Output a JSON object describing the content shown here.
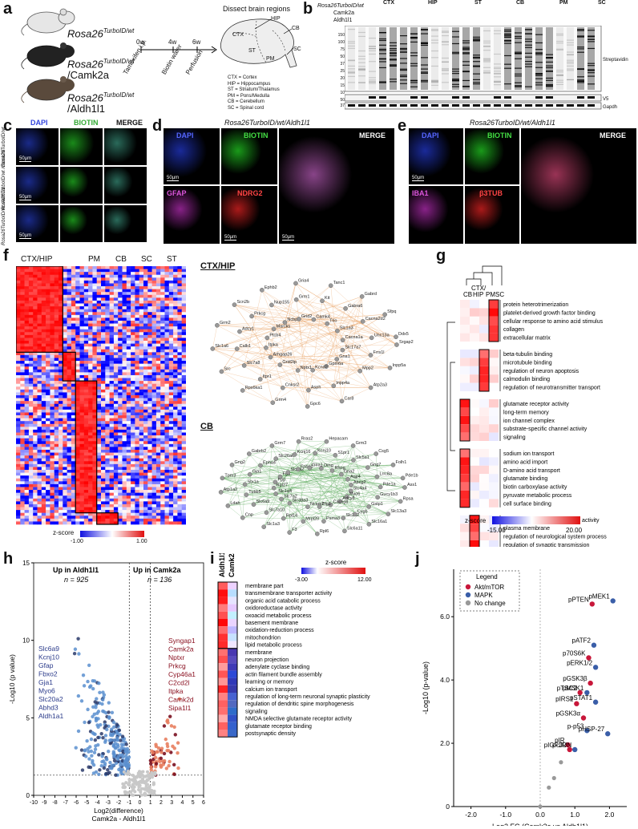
{
  "panel_labels": [
    "a",
    "b",
    "c",
    "d",
    "e",
    "f",
    "g",
    "h",
    "i",
    "j"
  ],
  "a": {
    "mice": [
      "Rosa26",
      "Rosa26",
      "Rosa26"
    ],
    "mice_sup": [
      "TurboID/wt",
      "TurboID/wt",
      "TurboID/wt"
    ],
    "mice_sub": [
      "",
      "/Camk2a",
      "/Aldh1l1"
    ],
    "timeline": [
      "0w",
      "4w",
      "6w"
    ],
    "steps": [
      "Tamoxifen i.p.",
      "Biotin water",
      "Perfusion"
    ],
    "dissect_title": "Dissect brain regions",
    "regions": [
      "CTX",
      "HIP",
      "ST",
      "PM",
      "CB",
      "SC"
    ],
    "legend": [
      "CTX = Cortex",
      "HIP = Hippocampus",
      "ST = Striatum/Thalamus",
      "PM = Pons/Medulla",
      "CB = Cerebellum",
      "SC = Spinal cord"
    ]
  },
  "b": {
    "regions": [
      "CTX",
      "HIP",
      "ST",
      "CB",
      "PM",
      "SC"
    ],
    "row_labels": [
      "Rosa26TurboID/wt",
      "Camk2a",
      "Aldh1l1"
    ],
    "mw": [
      "150",
      "100",
      "75",
      "50",
      "37",
      "25",
      "20",
      "15",
      "10"
    ],
    "mw2": [
      "50",
      "37"
    ],
    "blot_labels": [
      "Streptavidin",
      "V5",
      "Gapdh"
    ]
  },
  "c": {
    "headers": [
      "DAPI",
      "BIOTIN",
      "MERGE"
    ],
    "rows": [
      "Rosa26TurboID/wt",
      "Rosa26TurboID/wt /Camk2a",
      "Rosa26TurboID/wt /Aldh1l1"
    ],
    "scale": "50µm"
  },
  "d": {
    "title": "Rosa26TurboID/wt/Aldh1l1",
    "labels": [
      "DAPI",
      "BIOTIN",
      "MERGE",
      "GFAP",
      "NDRG2"
    ],
    "scale": "50µm"
  },
  "e": {
    "title": "Rosa26TurboID/wt/Aldh1l1",
    "labels": [
      "DAPI",
      "BIOTIN",
      "MERGE",
      "IBA1",
      "β3TUB"
    ],
    "scale": "50µm"
  },
  "f": {
    "regions": [
      "CTX/HIP",
      "PM",
      "CB",
      "SC",
      "ST"
    ],
    "zscore_label": "z-score",
    "zscore_ticks": [
      "-1.00",
      "1.00"
    ],
    "network1_title": "CTX/HIP",
    "network1_nodes": [
      "Srgap2",
      "Inpp4a",
      "Grid2ip",
      "Inpp5a",
      "Asph",
      "Arhgap26",
      "Atp2a3",
      "Cnksr2",
      "Itpka",
      "Car8",
      "Itpr1",
      "Ptcb4",
      "Gpc6",
      "Slc7a8",
      "Marcks",
      "Grm4",
      "Calb1",
      "Ncbp1",
      "Rps6ka1",
      "Adcy1",
      "Grid2",
      "Src",
      "Prkcg",
      "Camk4",
      "Slc1a6",
      "Nup155",
      "Trio",
      "Grm2",
      "Grm1",
      "Slc1a3",
      "Scn2b",
      "Kit",
      "Cacna1a",
      "Ephb2",
      "Gabra6",
      "Slc17a7",
      "Gria4",
      "Cacna2d2",
      "Gna1",
      "Tanc1",
      "Unc13a",
      "Gpm6a",
      "Gabrd",
      "Frrs1l",
      "Kcnd2",
      "Sfpq",
      "Mpp2",
      "Nptx1",
      "Ddx5"
    ],
    "network2_title": "CB",
    "network2_nodes": [
      "Ass1",
      "Slc3a2",
      "Slc38a3",
      "Rpsa",
      "Psma3",
      "Slc7a2",
      "Slc13a3",
      "Mrpl20",
      "Slc1a4",
      "Slc16a1",
      "Rpl14",
      "Rpl27",
      "Slc6a11",
      "Slc7a10",
      "Fgg",
      "Rpl6",
      "Slc6a9",
      "Fga",
      "F3",
      "Tubb5",
      "Slc1a2",
      "Slc1a3",
      "Stx1a",
      "Fnbp1",
      "Cnp",
      "Gja1",
      "Glra1",
      "Ldah",
      "Epha4",
      "Omg",
      "Atp1a2",
      "Slc26a6",
      "Rhog",
      "Tpm3",
      "Kcnj16",
      "Gria2",
      "Gng2",
      "Kcnj10",
      "Aqp4",
      "Gabrb2",
      "S1pr1",
      "Abcg2",
      "Grm7",
      "Slc5a1",
      "Slc4a4",
      "Rras2",
      "Gng7",
      "Myo6",
      "Hepacam",
      "Lrrc8a",
      "Adcy8",
      "Grm3",
      "Pde1a",
      "Cacng8",
      "Csg5",
      "Gucy1b3",
      "Dlg1",
      "Folh1",
      "Gstp1",
      "Ncam2",
      "Pde1b",
      "Cygb"
    ]
  },
  "g": {
    "columns": [
      "CB",
      "CTX/ HIP",
      "PM",
      "SC"
    ],
    "groups": [
      [
        "protein heterotrimerization",
        "platelet-derived growth factor binding",
        "cellular response to amino acid stimulus",
        "collagen",
        "extracellular matrix"
      ],
      [
        "beta-tubulin binding",
        "microtubule binding",
        "regulation of neuron apoptosis",
        "calmodulin binding",
        "regulation of neurotransmitter transport"
      ],
      [
        "glutamate receptor activity",
        "long-term memory",
        "ion channel complex",
        "substrate-specific channel activity",
        "signaling"
      ],
      [
        "sodium ion transport",
        "amino acid import",
        "D-amino acid transport",
        "glutamate binding",
        "biotin carboxylase activity",
        "pyruvate metabolic process",
        "cell surface binding"
      ],
      [
        "ion transmembrane transporter activity",
        "plasma membrane",
        "regulation of neurological system process",
        "regulation of synaptic transmission"
      ]
    ],
    "zscore_label": "z-score",
    "zscore_ticks": [
      "-15.00",
      "20.00"
    ]
  },
  "h": {
    "left_title": "Up in Aldh1l1",
    "left_n": "n = 925",
    "right_title": "Up in Camk2a",
    "right_n": "n = 136",
    "left_genes": [
      "Slc6a9",
      "Kcnj10",
      "Gfap",
      "Fbxo2",
      "Gja1",
      "Myo6",
      "Slc20a2",
      "Abhd3",
      "Aldh1a1"
    ],
    "right_genes": [
      "Syngap1",
      "Camk2a",
      "Nptxr",
      "Prkcg",
      "Cyp46a1",
      "C2cd2l",
      "Itpka",
      "Camk2d",
      "Sipa1l1"
    ],
    "ylabel": "-Log10 (p value)",
    "xlabel": "Log2(difference) Camk2a - Aldh1l1",
    "xticks": [
      "-10",
      "-9",
      "-8",
      "-7",
      "-6",
      "-5",
      "-4",
      "-3",
      "-2",
      "-1",
      "0",
      "1",
      "2",
      "3",
      "4",
      "5",
      "6"
    ],
    "yticks": [
      "0",
      "5",
      "10",
      "15"
    ]
  },
  "i": {
    "columns": [
      "Aldh1l1",
      "Camk2a"
    ],
    "terms": [
      "membrane part",
      "transmembrane transporter activity",
      "organic acid catabolic process",
      "oxidoreductase activity",
      "oxoacid metabolic process",
      "basement membrane",
      "oxidation-reduction process",
      "mitochondrion",
      "lipid metabolic process",
      "membrane",
      "neuron projection",
      "adenylate cyclase binding",
      "actin filament bundle assembly",
      "learning or memory",
      "calcium ion transport",
      "regulation of long-term neuronal synaptic plasticity",
      "regulation of dendritic spine morphogenesis",
      "signaling",
      "NMDA selective glutamate receptor activity",
      "glutamate receptor binding",
      "postsynaptic density"
    ],
    "zscore_label": "z-score",
    "zscore_ticks": [
      "-3.00",
      "12.00"
    ]
  },
  "chart_data": [
    {
      "type": "scatter",
      "panel": "j",
      "title": "",
      "xlabel": "Log2 FC (Camk2a vs Aldh1l1)",
      "ylabel": "-Log10 (p-value)",
      "xlim": [
        -2.5,
        2.5
      ],
      "ylim": [
        0,
        7.5
      ],
      "xticks": [
        -2.0,
        -1.0,
        0.0,
        1.0,
        2.0
      ],
      "yticks": [
        0,
        2.0,
        4.0,
        6.0
      ],
      "legend_title": "Legend",
      "legend": [
        "Akt/mTOR",
        "MAPK",
        "No change"
      ],
      "colors": {
        "Akt/mTOR": "#c8173a",
        "MAPK": "#3a5ea8",
        "No change": "#999999"
      },
      "points": [
        {
          "label": "pMEK1",
          "x": 2.1,
          "y": 6.5,
          "group": "MAPK"
        },
        {
          "label": "pPTEN",
          "x": 1.5,
          "y": 6.4,
          "group": "Akt/mTOR"
        },
        {
          "label": "pATF2",
          "x": 1.55,
          "y": 5.1,
          "group": "MAPK"
        },
        {
          "label": "p70S6K",
          "x": 1.4,
          "y": 4.7,
          "group": "Akt/mTOR"
        },
        {
          "label": "pERK1/2",
          "x": 1.6,
          "y": 4.4,
          "group": "MAPK"
        },
        {
          "label": "pGSK3β",
          "x": 1.45,
          "y": 3.9,
          "group": "Akt/mTOR"
        },
        {
          "label": "pMSK1",
          "x": 1.35,
          "y": 3.6,
          "group": "MAPK"
        },
        {
          "label": "pTSC2",
          "x": 1.15,
          "y": 3.6,
          "group": "Akt/mTOR"
        },
        {
          "label": "pSTAT1",
          "x": 1.6,
          "y": 3.3,
          "group": "MAPK"
        },
        {
          "label": "pIRS1",
          "x": 1.05,
          "y": 3.25,
          "group": "Akt/mTOR"
        },
        {
          "label": "pGSK3α",
          "x": 1.25,
          "y": 2.8,
          "group": "Akt/mTOR"
        },
        {
          "label": "p-p53",
          "x": 1.35,
          "y": 2.4,
          "group": "MAPK"
        },
        {
          "label": "pHSP-27",
          "x": 1.95,
          "y": 2.3,
          "group": "MAPK"
        },
        {
          "label": "pIR",
          "x": 0.8,
          "y": 1.95,
          "group": "Akt/mTOR"
        },
        {
          "label": "pcJUN",
          "x": 1.0,
          "y": 1.8,
          "group": "MAPK"
        },
        {
          "label": "pIGF1R",
          "x": 0.85,
          "y": 1.8,
          "group": "Akt/mTOR"
        },
        {
          "label": "",
          "x": 0.6,
          "y": 1.4,
          "group": "No change"
        },
        {
          "label": "",
          "x": 0.4,
          "y": 0.9,
          "group": "No change"
        },
        {
          "label": "",
          "x": 0.25,
          "y": 0.6,
          "group": "No change"
        },
        {
          "label": "",
          "x": 0.0,
          "y": 0.0,
          "group": "No change"
        }
      ]
    }
  ]
}
